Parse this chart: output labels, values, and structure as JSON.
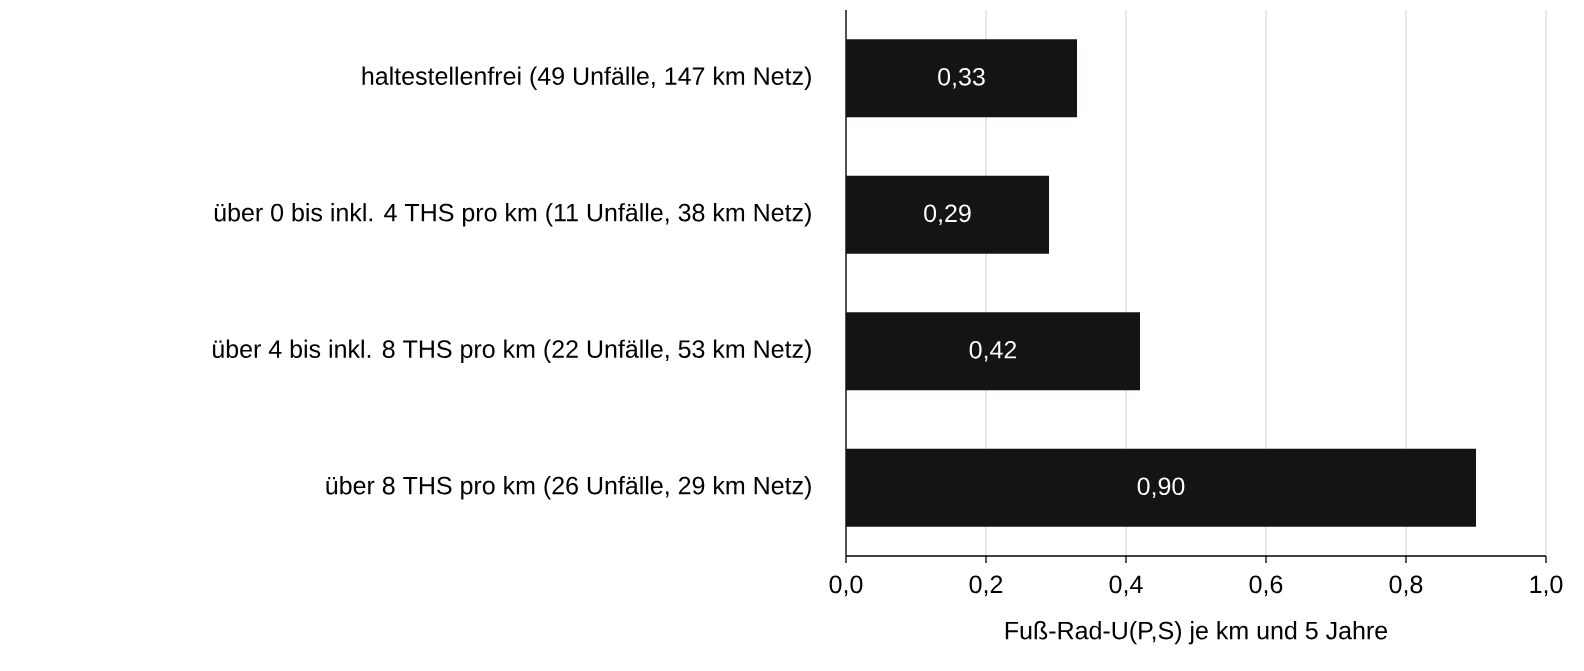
{
  "chart_data": {
    "type": "bar",
    "orientation": "horizontal",
    "xlabel": "Fuß-Rad-U(P,S) je km und 5 Jahre",
    "categories": [
      "haltestellenfrei (49 Unfälle, 147 km Netz)",
      "über 0 bis inkl. 4 THS pro km (11 Unfälle, 38 km Netz)",
      "über 4 bis inkl. 8 THS pro km (22 Unfälle, 53 km Netz)",
      "über 8 THS pro km (26 Unfälle, 29 km Netz)"
    ],
    "values": [
      0.33,
      0.29,
      0.42,
      0.9
    ],
    "value_labels": [
      "0,33",
      "0,29",
      "0,42",
      "0,90"
    ],
    "color": "#161314",
    "xlim": [
      0,
      1
    ],
    "xticks": [
      {
        "value": 0,
        "label": "0,0"
      },
      {
        "value": 0.2,
        "label": "0,2"
      },
      {
        "value": 0.4,
        "label": "0,4"
      },
      {
        "value": 0.6,
        "label": "0,6"
      },
      {
        "value": 0.8,
        "label": "0,8"
      },
      {
        "value": 1,
        "label": "1,0"
      }
    ],
    "grid": "x"
  }
}
